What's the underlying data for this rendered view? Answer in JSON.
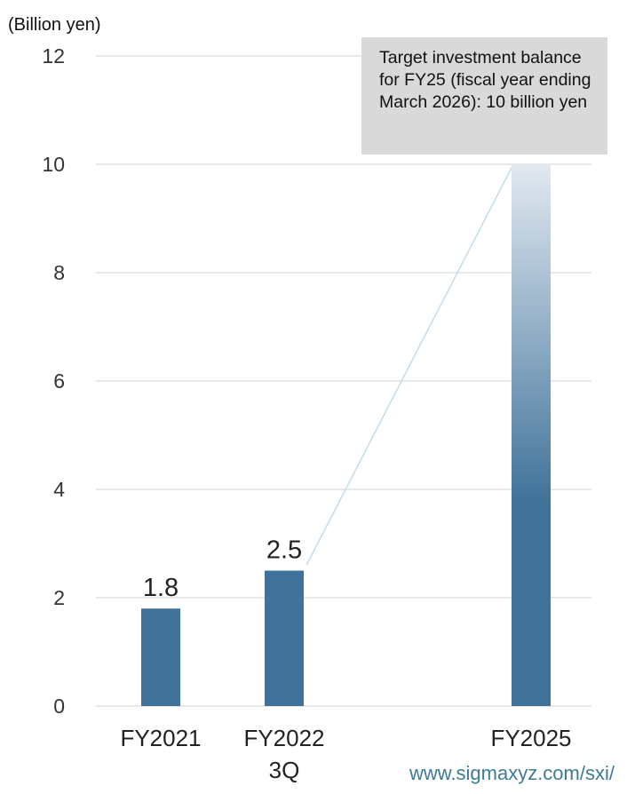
{
  "chart_data": {
    "type": "bar",
    "unit_label": "(Billion yen)",
    "categories": [
      {
        "line1": "FY2021",
        "line2": ""
      },
      {
        "line1": "FY2022",
        "line2": "3Q"
      },
      {
        "line1": "FY2025",
        "line2": ""
      }
    ],
    "values": [
      1.8,
      2.5,
      10
    ],
    "data_labels": [
      "1.8",
      "2.5",
      ""
    ],
    "ylim": [
      0,
      12
    ],
    "yticks": [
      "0",
      "2",
      "4",
      "6",
      "8",
      "10",
      "12"
    ],
    "grid": true,
    "bar_color": "#41739a",
    "target_bar_gradient": [
      "#e2e9f1",
      "#41739a"
    ],
    "annotation": "Target investment balance for FY25 (fiscal year ending March 2026): 10 billion yen"
  },
  "source": "www.sigmaxyz.com/sxi/"
}
